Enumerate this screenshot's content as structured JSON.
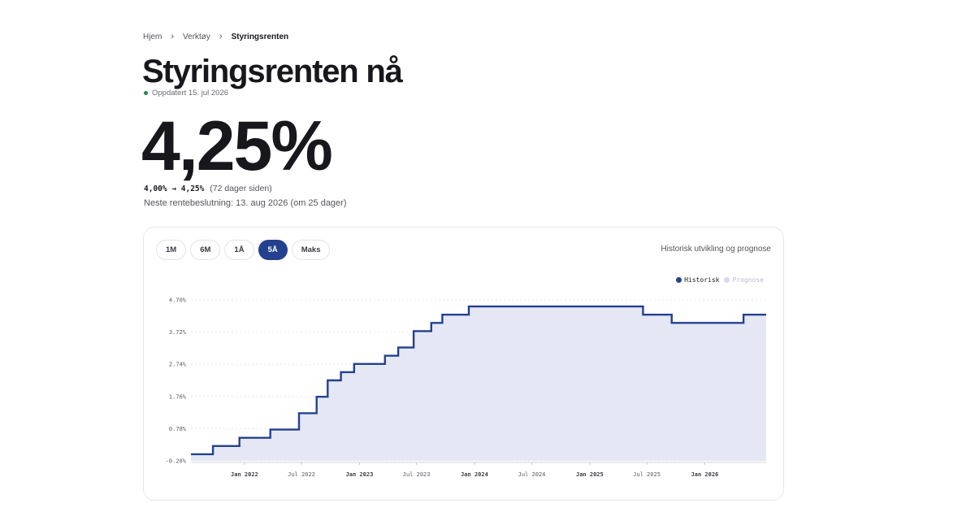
{
  "breadcrumb": {
    "home": "Hjem",
    "tools": "Verktøy",
    "current": "Styringsrenten",
    "separator": "›"
  },
  "title": "Styringsrenten nå",
  "updated": "Oppdatert 15. jul 2026",
  "rate": "4,25%",
  "change": {
    "values": "4,00% → 4,25%",
    "ago": "(72 dager siden)"
  },
  "next_decision": "Neste rentebeslutning: 13. aug 2026 (om 25 dager)",
  "range_tabs": [
    {
      "label": "1M",
      "active": false
    },
    {
      "label": "6M",
      "active": false
    },
    {
      "label": "1Å",
      "active": false
    },
    {
      "label": "5Å",
      "active": true
    },
    {
      "label": "Maks",
      "active": false
    }
  ],
  "chart_caption": "Historisk utvikling og prognose",
  "legend": {
    "historical": "Historisk",
    "forecast": "Prognose"
  },
  "colors": {
    "accent": "#24408f",
    "area": "#e5e8f4",
    "forecast": "#d6d9ee",
    "updated_dot": "#1f8a4c"
  },
  "chart_data": {
    "type": "area",
    "step": true,
    "title": "",
    "xlabel": "",
    "ylabel": "",
    "ylim": [
      -0.2,
      4.7
    ],
    "yticks": [
      "4.70%",
      "3.72%",
      "2.74%",
      "1.76%",
      "0.78%",
      "-0.20%"
    ],
    "ytick_values": [
      4.7,
      3.72,
      2.74,
      1.76,
      0.78,
      -0.2
    ],
    "xlim": [
      "2021-07-15",
      "2026-07-15"
    ],
    "xticks": [
      {
        "date": "2022-01-01",
        "label": "Jan 2022",
        "strong": true
      },
      {
        "date": "2022-07-01",
        "label": "Jul 2022",
        "strong": false
      },
      {
        "date": "2023-01-01",
        "label": "Jan 2023",
        "strong": true
      },
      {
        "date": "2023-07-01",
        "label": "Jul 2023",
        "strong": false
      },
      {
        "date": "2024-01-01",
        "label": "Jan 2024",
        "strong": true
      },
      {
        "date": "2024-07-01",
        "label": "Jul 2024",
        "strong": false
      },
      {
        "date": "2025-01-01",
        "label": "Jan 2025",
        "strong": true
      },
      {
        "date": "2025-07-01",
        "label": "Jul 2025",
        "strong": false
      },
      {
        "date": "2026-01-01",
        "label": "Jan 2026",
        "strong": true
      }
    ],
    "grid": true,
    "legend_position": "top-right",
    "series": [
      {
        "name": "Historisk",
        "points": [
          {
            "x": "2021-07-15",
            "y": 0.0
          },
          {
            "x": "2021-09-23",
            "y": 0.25
          },
          {
            "x": "2021-12-16",
            "y": 0.5
          },
          {
            "x": "2022-03-24",
            "y": 0.75
          },
          {
            "x": "2022-06-23",
            "y": 1.25
          },
          {
            "x": "2022-08-18",
            "y": 1.75
          },
          {
            "x": "2022-09-22",
            "y": 2.25
          },
          {
            "x": "2022-11-03",
            "y": 2.5
          },
          {
            "x": "2022-12-15",
            "y": 2.75
          },
          {
            "x": "2023-03-23",
            "y": 3.0
          },
          {
            "x": "2023-05-04",
            "y": 3.25
          },
          {
            "x": "2023-06-22",
            "y": 3.75
          },
          {
            "x": "2023-08-17",
            "y": 4.0
          },
          {
            "x": "2023-09-21",
            "y": 4.25
          },
          {
            "x": "2023-12-14",
            "y": 4.5
          },
          {
            "x": "2025-06-19",
            "y": 4.25
          },
          {
            "x": "2025-09-18",
            "y": 4.0
          },
          {
            "x": "2026-05-04",
            "y": 4.25
          },
          {
            "x": "2026-07-15",
            "y": 4.25
          }
        ]
      }
    ]
  }
}
